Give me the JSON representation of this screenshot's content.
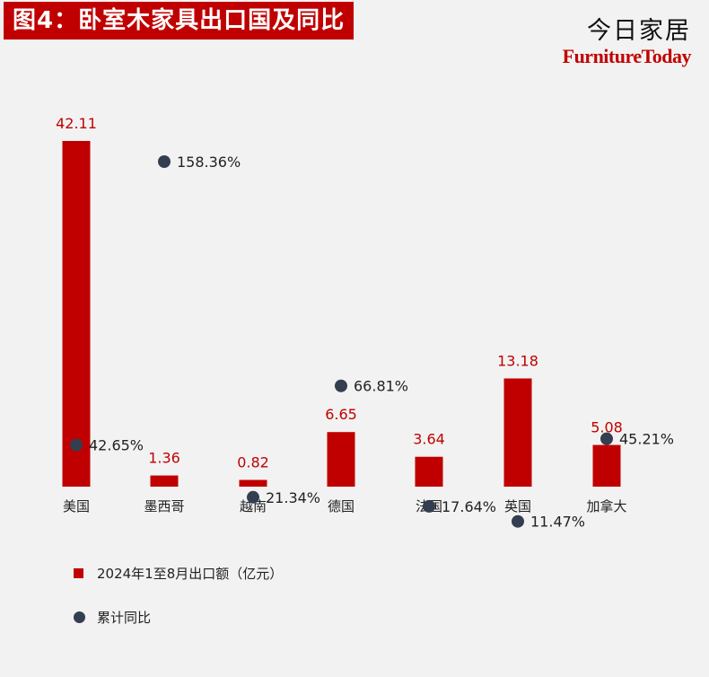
{
  "header": {
    "title": "图4：卧室木家具出口国及同比",
    "brand_cn": "今日家居",
    "brand_en": "FurnitureToday"
  },
  "colors": {
    "bar": "#c00000",
    "dot": "#333f50",
    "bar_label": "#c00000"
  },
  "chart_data": {
    "type": "bar",
    "title": "图4：卧室木家具出口国及同比",
    "categories": [
      "美国",
      "墨西哥",
      "越南",
      "德国",
      "法国",
      "英国",
      "加拿大"
    ],
    "series": [
      {
        "name": "2024年1至8月出口额（亿元）",
        "kind": "bar",
        "values": [
          42.11,
          1.36,
          0.82,
          6.65,
          3.64,
          13.18,
          5.08
        ],
        "labels": [
          "42.11",
          "1.36",
          "0.82",
          "6.65",
          "3.64",
          "13.18",
          "5.08"
        ]
      },
      {
        "name": "累计同比",
        "kind": "scatter",
        "values": [
          42.65,
          158.36,
          21.34,
          66.81,
          17.64,
          11.47,
          45.21
        ],
        "labels": [
          "42.65%",
          "158.36%",
          "21.34%",
          "66.81%",
          "17.64%",
          "11.47%",
          "45.21%"
        ]
      }
    ],
    "xlabel": "",
    "ylabel": "",
    "grid": false,
    "legend_position": "bottom-left"
  },
  "legend": {
    "bar_label": "2024年1至8月出口额（亿元）",
    "dot_label": "累计同比"
  }
}
